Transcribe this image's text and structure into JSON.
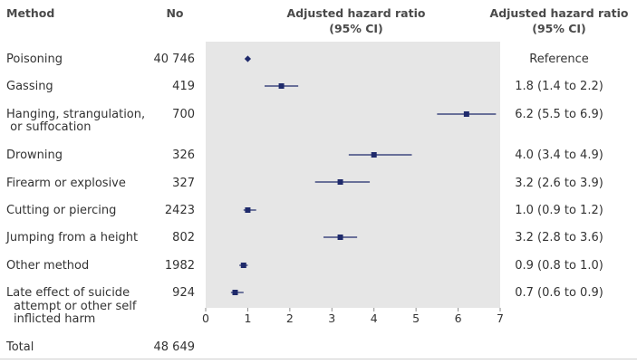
{
  "headers": {
    "method": "Method",
    "no": "No",
    "ahr_line1": "Adjusted hazard ratio",
    "ahr_line2": "(95% CI)",
    "ahr_ci_line1": "Adjusted hazard ratio",
    "ahr_ci_line2": "(95% CI)"
  },
  "rows": [
    {
      "label": [
        "Poisoning"
      ],
      "no": "40 746",
      "ci_text": "Reference"
    },
    {
      "label": [
        "Gassing"
      ],
      "no": "419",
      "ci_text": "1.8 (1.4 to 2.2)"
    },
    {
      "label": [
        "Hanging, strangulation,",
        " or suffocation"
      ],
      "no": "700",
      "ci_text": "6.2 (5.5 to 6.9)"
    },
    {
      "label": [
        "Drowning"
      ],
      "no": "326",
      "ci_text": "4.0 (3.4 to 4.9)"
    },
    {
      "label": [
        "Firearm or explosive"
      ],
      "no": "327",
      "ci_text": "3.2 (2.6 to 3.9)"
    },
    {
      "label": [
        "Cutting or piercing"
      ],
      "no": "2423",
      "ci_text": "1.0 (0.9 to 1.2)"
    },
    {
      "label": [
        "Jumping from a height"
      ],
      "no": "802",
      "ci_text": "3.2 (2.8 to 3.6)"
    },
    {
      "label": [
        "Other method"
      ],
      "no": "1982",
      "ci_text": "0.9 (0.8 to 1.0)"
    },
    {
      "label": [
        "Late effect of suicide",
        "attempt or other self",
        "inflicted harm"
      ],
      "no": "924",
      "ci_text": "0.7 (0.6 to 0.9)"
    }
  ],
  "total": {
    "label": "Total",
    "no": "48 649"
  },
  "chart_data": {
    "type": "forest",
    "title": "",
    "xlabel": "",
    "ylabel": "",
    "xlim": [
      0,
      7
    ],
    "xticks": [
      "0",
      "1",
      "2",
      "3",
      "4",
      "5",
      "6",
      "7"
    ],
    "grid": false,
    "categories": [
      "Poisoning",
      "Gassing",
      "Hanging, strangulation, or suffocation",
      "Drowning",
      "Firearm or explosive",
      "Cutting or piercing",
      "Jumping from a height",
      "Other method",
      "Late effect of suicide attempt or other self inflicted harm"
    ],
    "points": [
      {
        "estimate": 1.0,
        "lower": null,
        "upper": null,
        "reference": true
      },
      {
        "estimate": 1.8,
        "lower": 1.4,
        "upper": 2.2
      },
      {
        "estimate": 6.2,
        "lower": 5.5,
        "upper": 6.9
      },
      {
        "estimate": 4.0,
        "lower": 3.4,
        "upper": 4.9
      },
      {
        "estimate": 3.2,
        "lower": 2.6,
        "upper": 3.9
      },
      {
        "estimate": 1.0,
        "lower": 0.9,
        "upper": 1.2
      },
      {
        "estimate": 3.2,
        "lower": 2.8,
        "upper": 3.6
      },
      {
        "estimate": 0.9,
        "lower": 0.8,
        "upper": 1.0
      },
      {
        "estimate": 0.7,
        "lower": 0.6,
        "upper": 0.9
      }
    ],
    "colors": {
      "plot_bg": "#e6e6e6",
      "marker": "#1f2a6b"
    }
  }
}
